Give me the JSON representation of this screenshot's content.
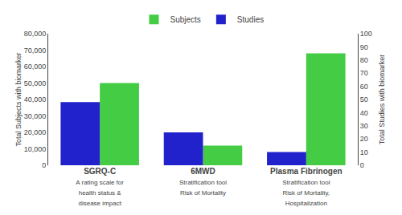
{
  "chart_data": {
    "type": "bar",
    "categories": [
      "SGRQ-C\nA rating scale for\nhealth status &\ndisease impact",
      "6MWD\nStratification tool\nRisk of Mortality",
      "Plasma Fibrinogen\nStratification tool\nRisk of Mortality,\nHospitalization"
    ],
    "series": [
      {
        "name": "Studies",
        "color": "#2222cc",
        "values": [
          48,
          25,
          10
        ],
        "axis": "y2"
      },
      {
        "name": "Subjects",
        "color": "#44cc44",
        "values": [
          50000,
          12000,
          68000
        ]
      }
    ],
    "ylabel": "Total Subjects with biomarker",
    "y2label": "Total Studies with biomarker",
    "ylim": [
      0,
      80000
    ],
    "yticks": [
      0,
      {
        "value": 10000,
        "label": "10,000"
      },
      {
        "value": 20000,
        "label": "20,000"
      },
      {
        "value": 30000,
        "label": "30,000"
      },
      {
        "value": 40000,
        "label": "40,000"
      },
      {
        "value": 50000,
        "label": "50,000"
      },
      {
        "value": 60000,
        "label": "60,000"
      },
      {
        "value": 70000,
        "label": "70,000"
      },
      {
        "value": 80000,
        "label": "80,000"
      }
    ],
    "y2lim": [
      0,
      100
    ],
    "y2ticks": [
      0,
      10,
      20,
      30,
      40,
      50,
      60,
      70,
      80,
      90,
      100
    ],
    "grid": false,
    "legend": "upper center"
  }
}
